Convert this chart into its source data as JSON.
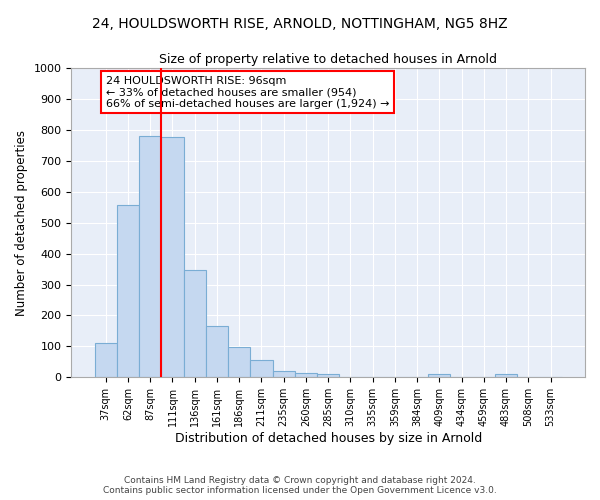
{
  "title1": "24, HOULDSWORTH RISE, ARNOLD, NOTTINGHAM, NG5 8HZ",
  "title2": "Size of property relative to detached houses in Arnold",
  "xlabel": "Distribution of detached houses by size in Arnold",
  "ylabel": "Number of detached properties",
  "categories": [
    "37sqm",
    "62sqm",
    "87sqm",
    "111sqm",
    "136sqm",
    "161sqm",
    "186sqm",
    "211sqm",
    "235sqm",
    "260sqm",
    "285sqm",
    "310sqm",
    "335sqm",
    "359sqm",
    "384sqm",
    "409sqm",
    "434sqm",
    "459sqm",
    "483sqm",
    "508sqm",
    "533sqm"
  ],
  "values": [
    112,
    558,
    780,
    778,
    348,
    165,
    97,
    55,
    20,
    15,
    12,
    0,
    0,
    0,
    0,
    10,
    0,
    0,
    10,
    0,
    0
  ],
  "bar_color": "#c5d8f0",
  "bar_edge_color": "#7aadd4",
  "vline_color": "red",
  "annotation_text": "24 HOULDSWORTH RISE: 96sqm\n← 33% of detached houses are smaller (954)\n66% of semi-detached houses are larger (1,924) →",
  "annotation_box_color": "white",
  "annotation_box_edge": "red",
  "background_color": "#e8eef8",
  "grid_color": "white",
  "footer1": "Contains HM Land Registry data © Crown copyright and database right 2024.",
  "footer2": "Contains public sector information licensed under the Open Government Licence v3.0.",
  "ylim": [
    0,
    1000
  ],
  "yticks": [
    0,
    100,
    200,
    300,
    400,
    500,
    600,
    700,
    800,
    900,
    1000
  ]
}
